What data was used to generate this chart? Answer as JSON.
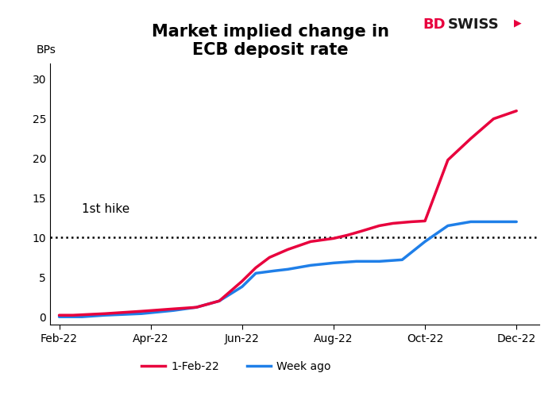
{
  "title_line1": "Market implied change in",
  "title_line2": "ECB deposit rate",
  "bps_label": "BPs",
  "ylim": [
    -1,
    32
  ],
  "yticks": [
    0,
    5,
    10,
    15,
    20,
    25,
    30
  ],
  "xtick_labels": [
    "Feb-22",
    "Apr-22",
    "Jun-22",
    "Aug-22",
    "Oct-22",
    "Dec-22"
  ],
  "dotted_line_y": 10,
  "annotation_text": "1st hike",
  "red_x": [
    0,
    0.3,
    1.0,
    1.8,
    2.5,
    3.0,
    3.5,
    4.0,
    4.3,
    4.6,
    5.0,
    5.5,
    6.0,
    6.3,
    6.6,
    7.0,
    7.3,
    7.7,
    8.0,
    8.5,
    9.0,
    9.5,
    10.0
  ],
  "red_y": [
    0.2,
    0.2,
    0.4,
    0.7,
    1.0,
    1.2,
    2.0,
    4.5,
    6.2,
    7.5,
    8.5,
    9.5,
    9.9,
    10.3,
    10.8,
    11.5,
    11.8,
    12.0,
    12.1,
    19.8,
    22.5,
    25.0,
    26.0
  ],
  "blue_x": [
    0,
    0.5,
    1.0,
    1.8,
    2.5,
    3.0,
    3.5,
    4.0,
    4.3,
    4.7,
    5.0,
    5.5,
    6.0,
    6.5,
    7.0,
    7.5,
    8.0,
    8.5,
    9.0,
    9.5,
    10.0
  ],
  "blue_y": [
    0.0,
    0.0,
    0.2,
    0.4,
    0.8,
    1.2,
    2.0,
    3.8,
    5.5,
    5.8,
    6.0,
    6.5,
    6.8,
    7.0,
    7.0,
    7.2,
    9.5,
    11.5,
    12.0,
    12.0,
    12.0
  ],
  "red_color": "#e8003d",
  "blue_color": "#1f7fe8",
  "red_label": "1-Feb-22",
  "blue_label": "Week ago",
  "linewidth": 2.5,
  "background_color": "#ffffff",
  "logo_bd_color": "#e8003d",
  "logo_swiss_color": "#1a1a1a",
  "title_fontsize": 15,
  "tick_fontsize": 10,
  "annotation_fontsize": 11
}
